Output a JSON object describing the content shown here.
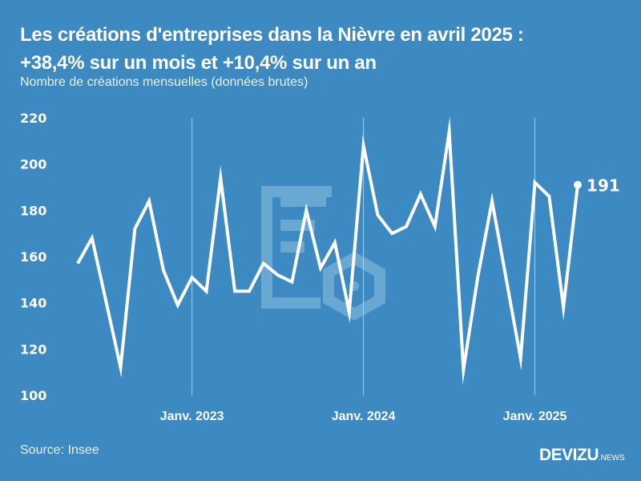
{
  "header": {
    "title_line1": "Les créations d'entreprises dans la Nièvre en avril 2025 :",
    "title_line2": "+38,4% sur un mois et +10,4% sur un an",
    "subtitle": "Nombre de créations mensuelles (données brutes)"
  },
  "footer": {
    "source": "Source: Insee",
    "logo_main": "DEVIZU",
    "logo_suffix": ".NEWS"
  },
  "colors": {
    "background": "#3d89c1",
    "line": "#ffffff",
    "gridline": "#a9cde8",
    "watermark": "#6aa8d4"
  },
  "watermark_icon": "document-with-hexagon-icon",
  "chart_data": {
    "type": "line",
    "title": "Les créations d'entreprises dans la Nièvre en avril 2025 : +38,4% sur un mois et +10,4% sur un an",
    "subtitle": "Nombre de créations mensuelles (données brutes)",
    "xlabel": "",
    "ylabel": "",
    "ylim": [
      100,
      220
    ],
    "yticks": [
      100,
      120,
      140,
      160,
      180,
      200,
      220
    ],
    "xtick_labels": [
      {
        "label": "Janv. 2023",
        "month": "2023-01"
      },
      {
        "label": "Janv. 2024",
        "month": "2024-01"
      },
      {
        "label": "Janv. 2025",
        "month": "2025-01"
      }
    ],
    "grid": "vertical lines at January",
    "x": [
      "2022-05",
      "2022-06",
      "2022-07",
      "2022-08",
      "2022-09",
      "2022-10",
      "2022-11",
      "2022-12",
      "2023-01",
      "2023-02",
      "2023-03",
      "2023-04",
      "2023-05",
      "2023-06",
      "2023-07",
      "2023-08",
      "2023-09",
      "2023-10",
      "2023-11",
      "2023-12",
      "2024-01",
      "2024-02",
      "2024-03",
      "2024-04",
      "2024-05",
      "2024-06",
      "2024-07",
      "2024-08",
      "2024-09",
      "2024-10",
      "2024-11",
      "2024-12",
      "2025-01",
      "2025-02",
      "2025-03",
      "2025-04"
    ],
    "series": [
      {
        "name": "Créations d'entreprises",
        "values": [
          157,
          168,
          140,
          112,
          172,
          184,
          154,
          139,
          151,
          145,
          194,
          145,
          145,
          157,
          152,
          149,
          180,
          155,
          166,
          136,
          208,
          178,
          170,
          173,
          187,
          173,
          214,
          111,
          151,
          184,
          150,
          116,
          192,
          186,
          138,
          191
        ]
      }
    ],
    "annotations": [
      {
        "month": "2025-04",
        "label": "191"
      }
    ]
  }
}
